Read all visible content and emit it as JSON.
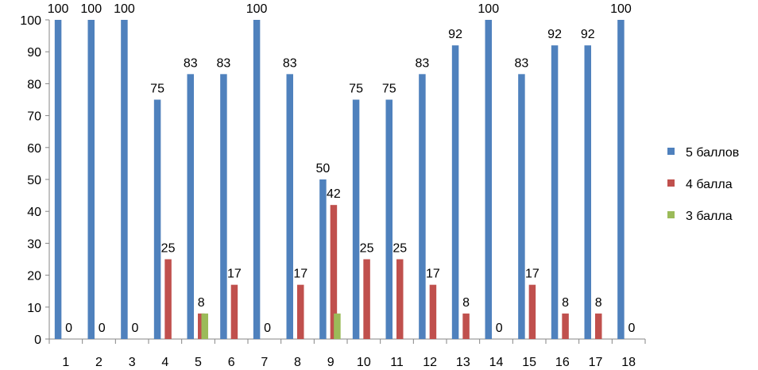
{
  "chart_data": {
    "type": "bar",
    "categories": [
      "1",
      "2",
      "3",
      "4",
      "5",
      "6",
      "7",
      "8",
      "9",
      "10",
      "11",
      "12",
      "13",
      "14",
      "15",
      "16",
      "17",
      "18"
    ],
    "series": [
      {
        "name": "5 баллов",
        "color": "#4F81BD",
        "values": [
          100,
          100,
          100,
          75,
          83,
          83,
          100,
          83,
          50,
          75,
          75,
          83,
          92,
          100,
          83,
          92,
          92,
          100
        ]
      },
      {
        "name": "4 балла",
        "color": "#C0504D",
        "values": [
          0,
          0,
          0,
          25,
          8,
          17,
          0,
          17,
          42,
          25,
          25,
          17,
          8,
          0,
          17,
          8,
          8,
          0
        ]
      },
      {
        "name": "3 балла",
        "color": "#9BBB59",
        "values": [
          0,
          0,
          0,
          0,
          8,
          0,
          0,
          0,
          8,
          0,
          0,
          0,
          0,
          0,
          0,
          0,
          0,
          0
        ]
      }
    ],
    "data_labels": [
      {
        "series": 0,
        "category": 0,
        "text": "100"
      },
      {
        "series": 1,
        "category": 0,
        "text": "0"
      },
      {
        "series": 0,
        "category": 1,
        "text": "100"
      },
      {
        "series": 1,
        "category": 1,
        "text": "0"
      },
      {
        "series": 0,
        "category": 2,
        "text": "100"
      },
      {
        "series": 1,
        "category": 2,
        "text": "0"
      },
      {
        "series": 0,
        "category": 3,
        "text": "75"
      },
      {
        "series": 1,
        "category": 3,
        "text": "25"
      },
      {
        "series": 0,
        "category": 4,
        "text": "83"
      },
      {
        "series": 1,
        "category": 4,
        "text": "8"
      },
      {
        "series": 0,
        "category": 5,
        "text": "83"
      },
      {
        "series": 1,
        "category": 5,
        "text": "17"
      },
      {
        "series": 0,
        "category": 6,
        "text": "100"
      },
      {
        "series": 1,
        "category": 6,
        "text": "0"
      },
      {
        "series": 0,
        "category": 7,
        "text": "83"
      },
      {
        "series": 1,
        "category": 7,
        "text": "17"
      },
      {
        "series": 0,
        "category": 8,
        "text": "50"
      },
      {
        "series": 1,
        "category": 8,
        "text": "42"
      },
      {
        "series": 0,
        "category": 9,
        "text": "75"
      },
      {
        "series": 1,
        "category": 9,
        "text": "25"
      },
      {
        "series": 0,
        "category": 10,
        "text": "75"
      },
      {
        "series": 1,
        "category": 10,
        "text": "25"
      },
      {
        "series": 0,
        "category": 11,
        "text": "83"
      },
      {
        "series": 1,
        "category": 11,
        "text": "17"
      },
      {
        "series": 0,
        "category": 12,
        "text": "92"
      },
      {
        "series": 1,
        "category": 12,
        "text": "8"
      },
      {
        "series": 0,
        "category": 13,
        "text": "100"
      },
      {
        "series": 1,
        "category": 13,
        "text": "0"
      },
      {
        "series": 0,
        "category": 14,
        "text": "83"
      },
      {
        "series": 1,
        "category": 14,
        "text": "17"
      },
      {
        "series": 0,
        "category": 15,
        "text": "92"
      },
      {
        "series": 1,
        "category": 15,
        "text": "8"
      },
      {
        "series": 0,
        "category": 16,
        "text": "92"
      },
      {
        "series": 1,
        "category": 16,
        "text": "8"
      },
      {
        "series": 0,
        "category": 17,
        "text": "100"
      },
      {
        "series": 1,
        "category": 17,
        "text": "0"
      }
    ],
    "ylim": [
      0,
      100
    ],
    "yticks": [
      0,
      10,
      20,
      30,
      40,
      50,
      60,
      70,
      80,
      90,
      100
    ],
    "grid": false,
    "legend_position": "right",
    "title": "",
    "xlabel": "",
    "ylabel": ""
  }
}
